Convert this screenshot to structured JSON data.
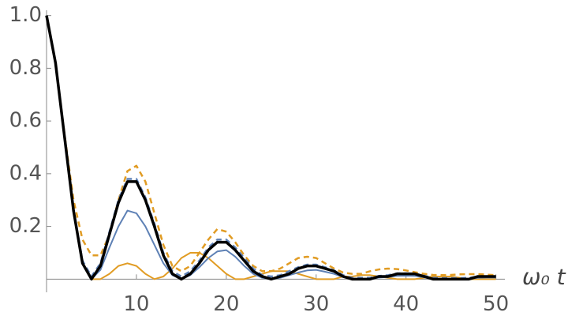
{
  "chart_data": {
    "type": "line",
    "x_label": "ω₀ t",
    "x": [
      0,
      1,
      2,
      3,
      4,
      5,
      6,
      7,
      8,
      9,
      10,
      11,
      12,
      13,
      14,
      15,
      16,
      17,
      18,
      19,
      20,
      21,
      22,
      23,
      24,
      25,
      26,
      27,
      28,
      29,
      30,
      31,
      32,
      33,
      34,
      35,
      36,
      37,
      38,
      39,
      40,
      41,
      42,
      43,
      44,
      45,
      46,
      47,
      48,
      49,
      50
    ],
    "series": [
      {
        "color": "#e19c24",
        "dashed": true,
        "line_width": 2.5,
        "values": [
          1,
          0.82,
          0.55,
          0.3,
          0.15,
          0.09,
          0.09,
          0.17,
          0.3,
          0.41,
          0.43,
          0.37,
          0.25,
          0.13,
          0.05,
          0.03,
          0.05,
          0.1,
          0.15,
          0.19,
          0.18,
          0.14,
          0.09,
          0.05,
          0.03,
          0.03,
          0.04,
          0.06,
          0.08,
          0.085,
          0.08,
          0.06,
          0.04,
          0.025,
          0.02,
          0.02,
          0.03,
          0.037,
          0.04,
          0.038,
          0.033,
          0.026,
          0.02,
          0.016,
          0.015,
          0.016,
          0.018,
          0.019,
          0.019,
          0.017,
          0.015
        ]
      },
      {
        "color": "#e19c24",
        "dashed": false,
        "line_width": 2,
        "values": [
          1,
          0.82,
          0.54,
          0.26,
          0.06,
          0,
          0,
          0.02,
          0.05,
          0.06,
          0.05,
          0.02,
          0,
          0.01,
          0.04,
          0.08,
          0.1,
          0.1,
          0.08,
          0.05,
          0.02,
          0,
          0,
          0.01,
          0.02,
          0.03,
          0.03,
          0.03,
          0.02,
          0.01,
          0,
          0,
          0,
          0.01,
          0.01,
          0.015,
          0.015,
          0.01,
          0.005,
          0,
          0,
          0,
          0.005,
          0.01,
          0.01,
          0.01,
          0.005,
          0,
          0,
          0,
          0
        ]
      },
      {
        "color": "#5e81b5",
        "dashed": false,
        "line_width": 2,
        "values": [
          1,
          0.82,
          0.54,
          0.26,
          0.06,
          0,
          0.035,
          0.12,
          0.2,
          0.26,
          0.25,
          0.2,
          0.13,
          0.06,
          0.015,
          0,
          0.015,
          0.045,
          0.08,
          0.105,
          0.11,
          0.085,
          0.05,
          0.02,
          0.005,
          0,
          0.005,
          0.015,
          0.025,
          0.033,
          0.035,
          0.028,
          0.02,
          0.008,
          0,
          0,
          0,
          0.006,
          0.008,
          0.012,
          0.013,
          0.012,
          0.007,
          0,
          0,
          0,
          0,
          0,
          0.005,
          0.006,
          0.006
        ]
      },
      {
        "color": "#5e81b5",
        "dashed": true,
        "line_width": 2.5,
        "values": [
          1,
          0.82,
          0.54,
          0.26,
          0.07,
          0.01,
          0.06,
          0.18,
          0.3,
          0.38,
          0.38,
          0.31,
          0.21,
          0.1,
          0.03,
          0.01,
          0.03,
          0.07,
          0.12,
          0.15,
          0.15,
          0.12,
          0.08,
          0.04,
          0.015,
          0.01,
          0.015,
          0.03,
          0.045,
          0.055,
          0.055,
          0.045,
          0.033,
          0.015,
          0.005,
          0.005,
          0.005,
          0.012,
          0.015,
          0.022,
          0.022,
          0.02,
          0.013,
          0.005,
          0.004,
          0.004,
          0.004,
          0.005,
          0.01,
          0.01,
          0.01
        ]
      },
      {
        "color": "#000000",
        "dashed": false,
        "line_width": 3.5,
        "values": [
          1,
          0.82,
          0.54,
          0.26,
          0.06,
          0,
          0.05,
          0.17,
          0.29,
          0.37,
          0.37,
          0.3,
          0.2,
          0.09,
          0.02,
          0,
          0.02,
          0.06,
          0.11,
          0.14,
          0.14,
          0.11,
          0.07,
          0.03,
          0.01,
          0,
          0.01,
          0.02,
          0.04,
          0.05,
          0.05,
          0.04,
          0.03,
          0.01,
          0,
          0,
          0,
          0.01,
          0.01,
          0.02,
          0.02,
          0.02,
          0.01,
          0,
          0,
          0,
          0,
          0,
          0.01,
          0.01,
          0.01
        ]
      }
    ],
    "xlim": [
      0,
      51
    ],
    "ylim": [
      -0.05,
      1.02
    ],
    "xticks": [
      10,
      20,
      30,
      40,
      50
    ],
    "yticks": [
      0.2,
      0.4,
      0.6,
      0.8,
      {
        "value": 1,
        "label": "1.0"
      }
    ],
    "grid": false
  }
}
